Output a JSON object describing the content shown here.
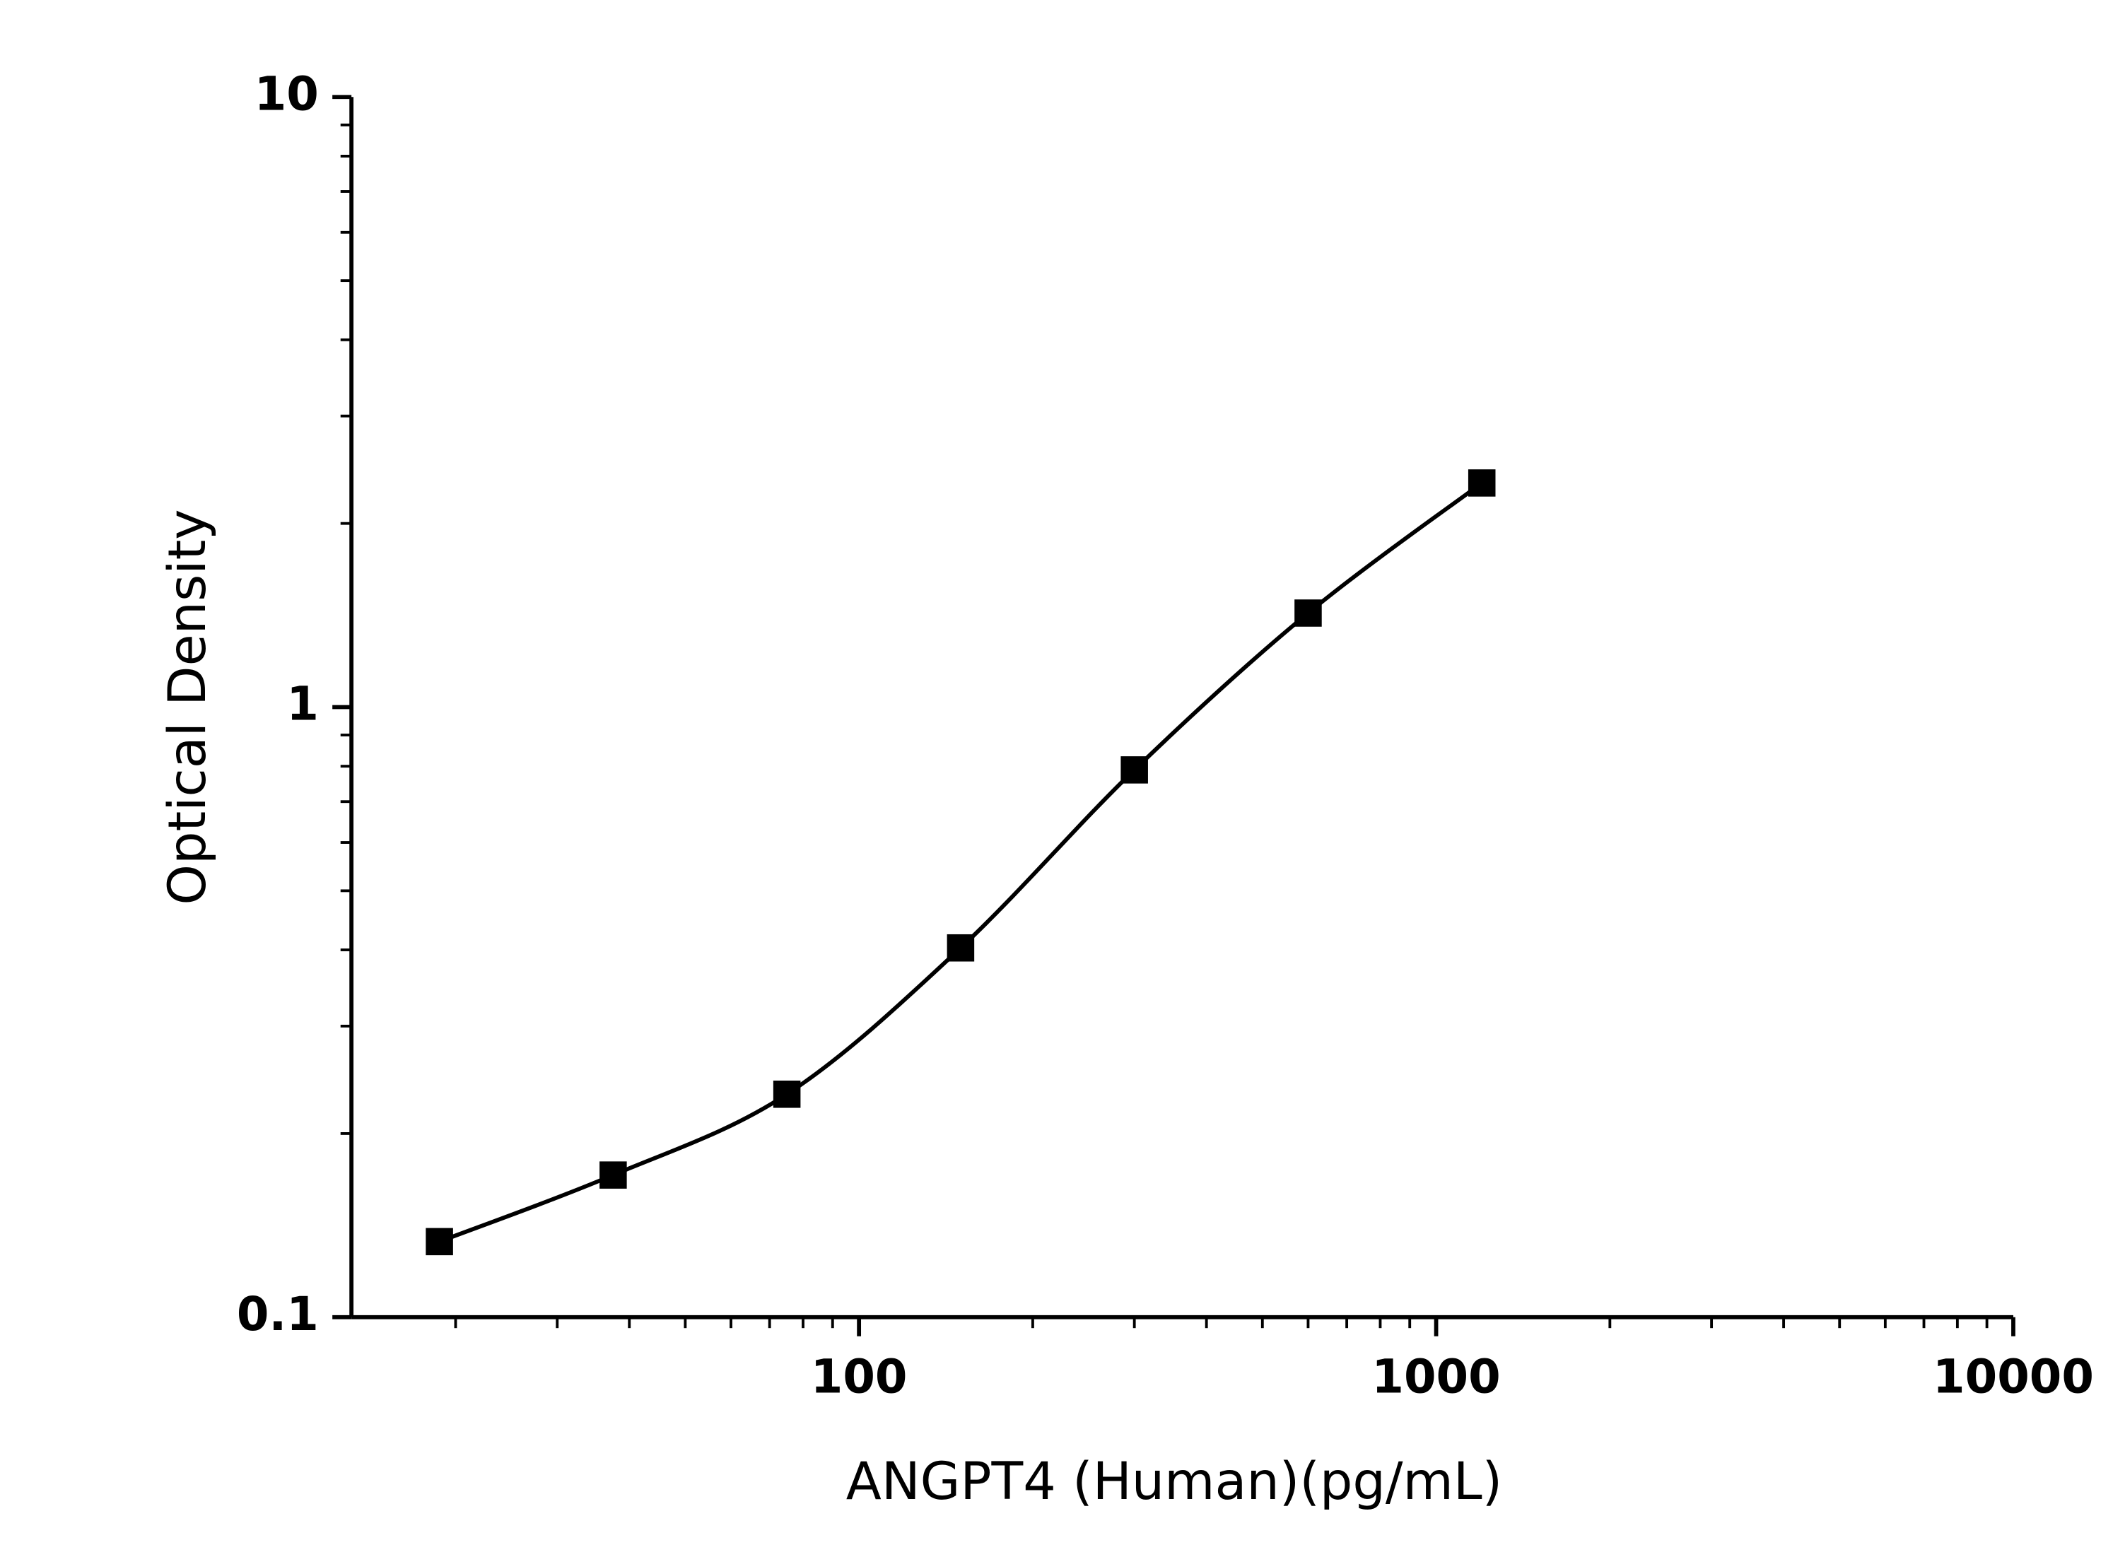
{
  "chart_data": {
    "type": "scatter",
    "xlabel": "ANGPT4 (Human)(pg/mL)",
    "ylabel": "Optical Density",
    "x": [
      18.75,
      37.5,
      75,
      150,
      300,
      600,
      1200
    ],
    "series": [
      {
        "color": "#000000",
        "values": [
          0.133,
          0.171,
          0.232,
          0.403,
          0.789,
          1.426,
          2.33
        ]
      }
    ],
    "xscale": "log",
    "yscale": "log",
    "xlim": [
      13.2,
      10000
    ],
    "ylim": [
      0.1,
      10
    ],
    "xticks": [
      100,
      1000,
      10000
    ],
    "yticks": [
      0.1,
      1,
      10
    ],
    "grid": false
  }
}
